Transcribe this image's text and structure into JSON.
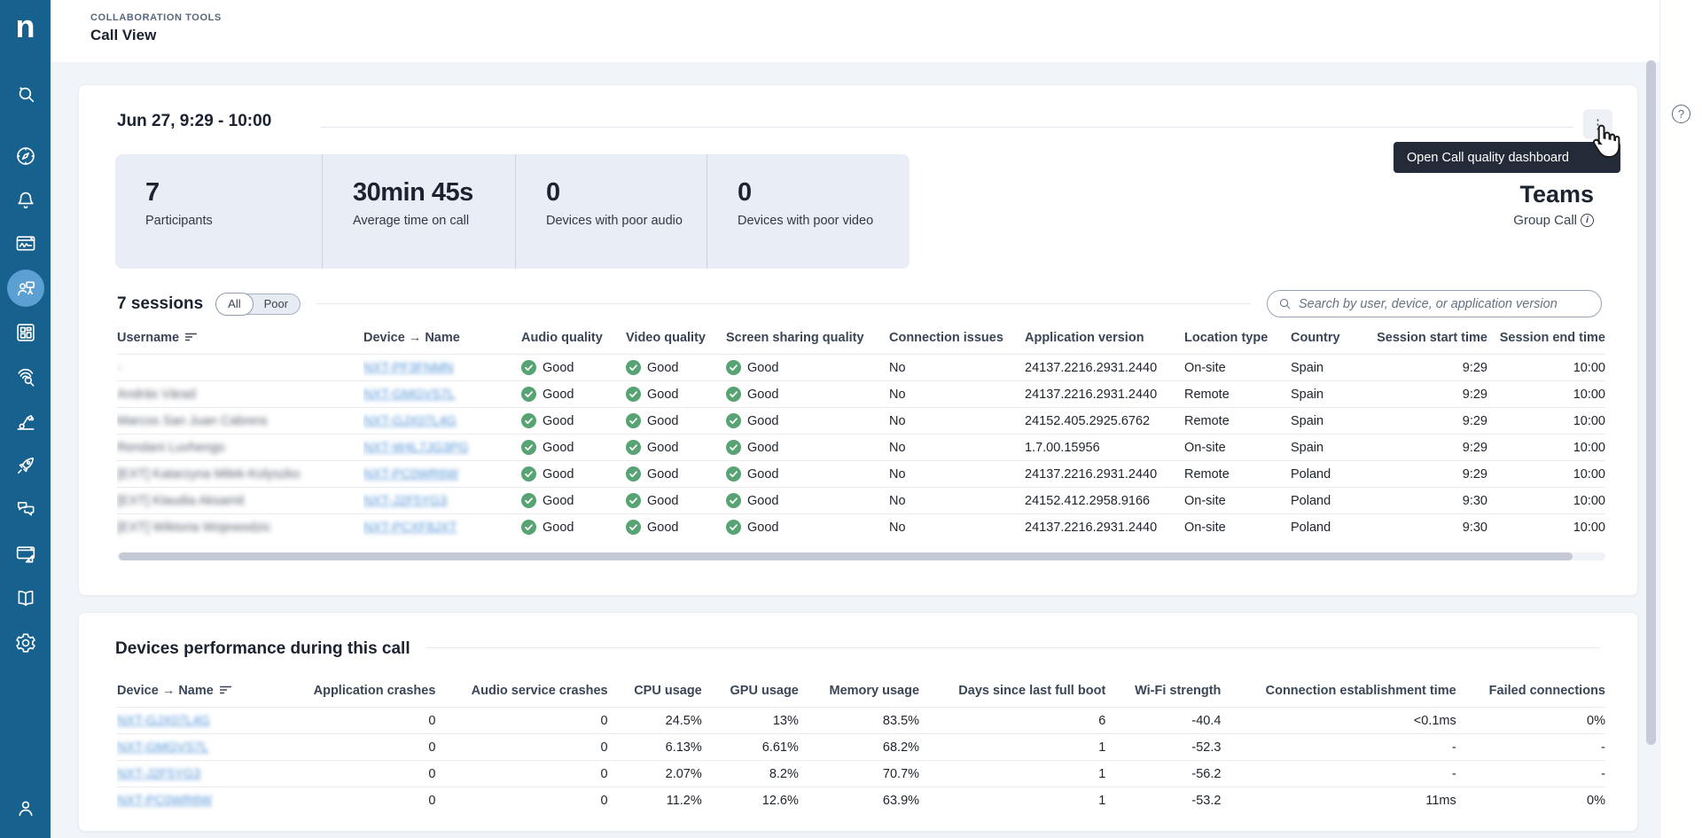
{
  "brand": {
    "logo_letter": "n"
  },
  "topbar": {
    "breadcrumb": "COLLABORATION TOOLS",
    "title": "Call View"
  },
  "icons": {
    "kebab": "⋮",
    "help": "?",
    "info": "i"
  },
  "colors": {
    "sidebar": "#17618F",
    "sidebar_active": "#5B9FD3",
    "good_green": "#57A373",
    "link_blue": "#5596D8",
    "tooltip_bg": "#242B38",
    "stats_bg": "#E9EEF6",
    "page_bg": "#F1F4F9"
  },
  "sidebar": {
    "items": [
      "ai-search",
      "explore-compass",
      "alerts-bell",
      "monitor-window",
      "collaboration-people",
      "apps-grid",
      "investigate-fingerprint",
      "automation-robot-arm",
      "adopt-rocket",
      "engage-chat",
      "designer-window",
      "library-book",
      "settings-gear",
      "account-user"
    ],
    "active_item": "collaboration-people"
  },
  "right_rail": {
    "help_label": "?"
  },
  "call_card": {
    "title": "Jun 27, 9:29 - 10:00",
    "tooltip": "Open Call quality dashboard",
    "stats": [
      {
        "value": "7",
        "label": "Participants"
      },
      {
        "value": "30min 45s",
        "label": "Average time on call"
      },
      {
        "value": "0",
        "label": "Devices with poor audio"
      },
      {
        "value": "0",
        "label": "Devices with poor video"
      }
    ],
    "platform": {
      "name": "Teams",
      "call_type": "Group Call"
    },
    "sessions": {
      "title": "7 sessions",
      "filters": [
        "All",
        "Poor"
      ],
      "active_filter": "All",
      "search_placeholder": "Search by user, device, or application version"
    },
    "table": {
      "columns": [
        "Username",
        "Device → Name",
        "Audio quality",
        "Video quality",
        "Screen sharing quality",
        "Connection issues",
        "Application version",
        "Location type",
        "Country",
        "Session start time",
        "Session end time"
      ],
      "rows": [
        {
          "username": "-",
          "device": "NXT-PF3FNMN",
          "audio": "Good",
          "video": "Good",
          "screen": "Good",
          "connection_issues": "No",
          "app_version": "24137.2216.2931.2440",
          "location": "On-site",
          "country": "Spain",
          "start": "9:29",
          "end": "10:00"
        },
        {
          "username": "András Várad",
          "device": "NXT-GMGVS7L",
          "audio": "Good",
          "video": "Good",
          "screen": "Good",
          "connection_issues": "No",
          "app_version": "24137.2216.2931.2440",
          "location": "Remote",
          "country": "Spain",
          "start": "9:29",
          "end": "10:00"
        },
        {
          "username": "Marcos San Juan Cabrera",
          "device": "NXT-GJX07L4G",
          "audio": "Good",
          "video": "Good",
          "screen": "Good",
          "connection_issues": "No",
          "app_version": "24152.405.2925.6762",
          "location": "Remote",
          "country": "Spain",
          "start": "9:29",
          "end": "10:00"
        },
        {
          "username": "Rendani Luvhengo",
          "device": "NXT-W4L7JG3PG",
          "audio": "Good",
          "video": "Good",
          "screen": "Good",
          "connection_issues": "No",
          "app_version": "1.7.00.15956",
          "location": "On-site",
          "country": "Spain",
          "start": "9:29",
          "end": "10:00"
        },
        {
          "username": "[EXT] Katarzyna Milek-Kolyszko",
          "device": "NXT-PC0WR6W",
          "audio": "Good",
          "video": "Good",
          "screen": "Good",
          "connection_issues": "No",
          "app_version": "24137.2216.2931.2440",
          "location": "Remote",
          "country": "Poland",
          "start": "9:29",
          "end": "10:00"
        },
        {
          "username": "[EXT] Klaudia Aksamit",
          "device": "NXT-J2F5YG3",
          "audio": "Good",
          "video": "Good",
          "screen": "Good",
          "connection_issues": "No",
          "app_version": "24152.412.2958.9166",
          "location": "On-site",
          "country": "Poland",
          "start": "9:30",
          "end": "10:00"
        },
        {
          "username": "[EXT] Wiktoria Wojewodzic",
          "device": "NXT-PCXF8JXT",
          "audio": "Good",
          "video": "Good",
          "screen": "Good",
          "connection_issues": "No",
          "app_version": "24137.2216.2931.2440",
          "location": "On-site",
          "country": "Poland",
          "start": "9:30",
          "end": "10:00"
        }
      ]
    }
  },
  "devices_card": {
    "title": "Devices performance during this call",
    "table": {
      "columns": [
        "Device → Name",
        "Application crashes",
        "Audio service crashes",
        "CPU usage",
        "GPU usage",
        "Memory usage",
        "Days since last full boot",
        "Wi-Fi strength",
        "Connection establishment time",
        "Failed connections"
      ],
      "rows": [
        {
          "device": "NXT-GJX07L4G",
          "app_crashes": "0",
          "audio_crashes": "0",
          "cpu": "24.5%",
          "gpu": "13%",
          "memory": "83.5%",
          "days": "6",
          "wifi": "-40.4",
          "conn_time": "<0.1ms",
          "failed": "0%"
        },
        {
          "device": "NXT-GMGVS7L",
          "app_crashes": "0",
          "audio_crashes": "0",
          "cpu": "6.13%",
          "gpu": "6.61%",
          "memory": "68.2%",
          "days": "1",
          "wifi": "-52.3",
          "conn_time": "-",
          "failed": "-"
        },
        {
          "device": "NXT-J2F5YG3",
          "app_crashes": "0",
          "audio_crashes": "0",
          "cpu": "2.07%",
          "gpu": "8.2%",
          "memory": "70.7%",
          "days": "1",
          "wifi": "-56.2",
          "conn_time": "-",
          "failed": "-"
        },
        {
          "device": "NXT-PC0WR6W",
          "app_crashes": "0",
          "audio_crashes": "0",
          "cpu": "11.2%",
          "gpu": "12.6%",
          "memory": "63.9%",
          "days": "1",
          "wifi": "-53.2",
          "conn_time": "11ms",
          "failed": "0%"
        }
      ]
    }
  }
}
